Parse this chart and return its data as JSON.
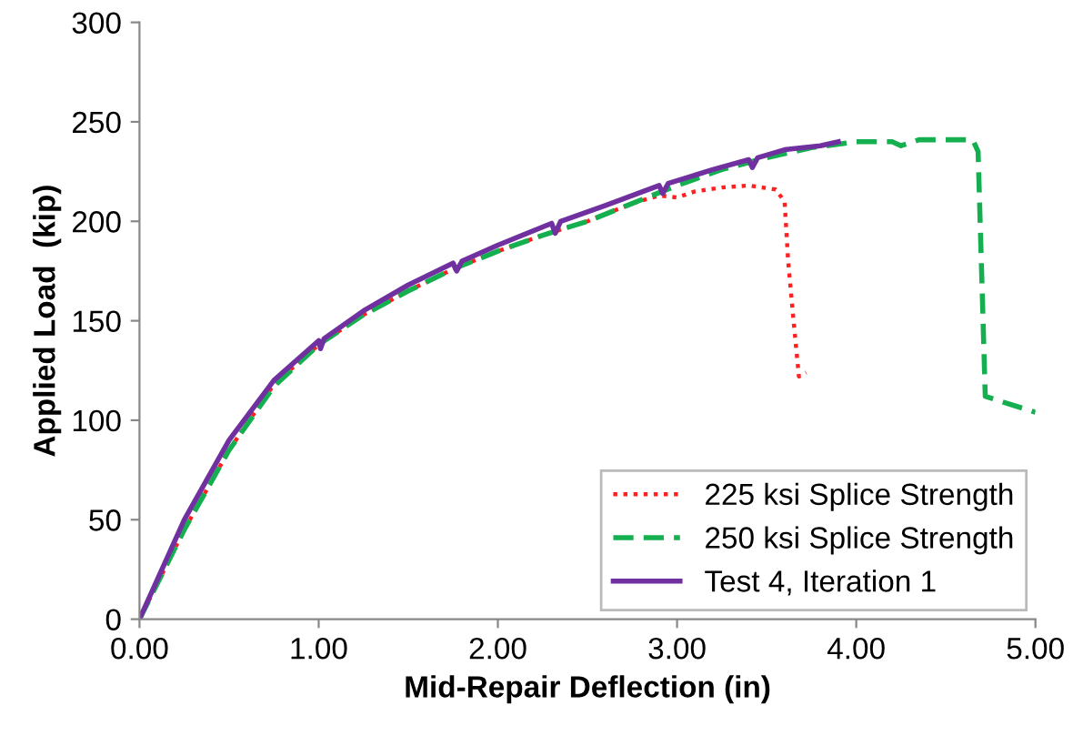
{
  "chart_data": {
    "type": "line",
    "xlabel": "Mid-Repair Deflection (in)",
    "ylabel": "Applied Load  (kip)",
    "xlim": [
      0,
      5
    ],
    "ylim": [
      0,
      300
    ],
    "xticks": [
      {
        "value": 0,
        "label": "0.00"
      },
      {
        "value": 1,
        "label": "1.00"
      },
      {
        "value": 2,
        "label": "2.00"
      },
      {
        "value": 3,
        "label": "3.00"
      },
      {
        "value": 4,
        "label": "4.00"
      },
      {
        "value": 5,
        "label": "5.00"
      }
    ],
    "yticks": [
      0,
      50,
      100,
      150,
      200,
      250,
      300
    ],
    "grid": false,
    "legend": "bottom right",
    "series": [
      {
        "name": "225 ksi Splice Strength",
        "color": "#ff2020",
        "line_style": "dotted",
        "x": [
          0,
          0.25,
          0.5,
          0.75,
          1.0,
          1.25,
          1.5,
          1.75,
          2.0,
          2.25,
          2.5,
          2.75,
          2.9,
          3.0,
          3.1,
          3.25,
          3.4,
          3.55,
          3.6,
          3.62,
          3.65,
          3.68,
          3.72
        ],
        "values": [
          0,
          45,
          85,
          118,
          138,
          153,
          165,
          176,
          185,
          193,
          200,
          209,
          213,
          212,
          215,
          217,
          218,
          216,
          210,
          180,
          150,
          122,
          124
        ]
      },
      {
        "name": "250 ksi Splice Strength",
        "color": "#14b050",
        "line_style": "dashed",
        "x": [
          0,
          0.25,
          0.5,
          0.75,
          1.0,
          1.25,
          1.5,
          1.75,
          2.0,
          2.25,
          2.5,
          2.75,
          3.0,
          3.25,
          3.5,
          3.75,
          4.0,
          4.2,
          4.25,
          4.35,
          4.65,
          4.68,
          4.72,
          5.0
        ],
        "values": [
          0,
          45,
          85,
          117,
          138,
          153,
          165,
          176,
          185,
          193,
          200,
          209,
          218,
          226,
          232,
          237,
          240,
          240,
          238,
          241,
          241,
          235,
          112,
          104
        ]
      },
      {
        "name": "Test 4, Iteration 1",
        "color": "#7030a0",
        "line_style": "solid",
        "x": [
          0,
          0.25,
          0.5,
          0.75,
          1.0,
          1.01,
          1.03,
          1.25,
          1.5,
          1.75,
          1.77,
          1.8,
          2.0,
          2.3,
          2.32,
          2.35,
          2.6,
          2.9,
          2.92,
          2.95,
          3.2,
          3.4,
          3.42,
          3.45,
          3.6,
          3.8,
          3.9
        ],
        "values": [
          0,
          50,
          90,
          120,
          140,
          136,
          141,
          155,
          168,
          179,
          175,
          180,
          188,
          199,
          194,
          200,
          208,
          218,
          214,
          219,
          226,
          231,
          227,
          232,
          236,
          238,
          240
        ]
      }
    ]
  }
}
